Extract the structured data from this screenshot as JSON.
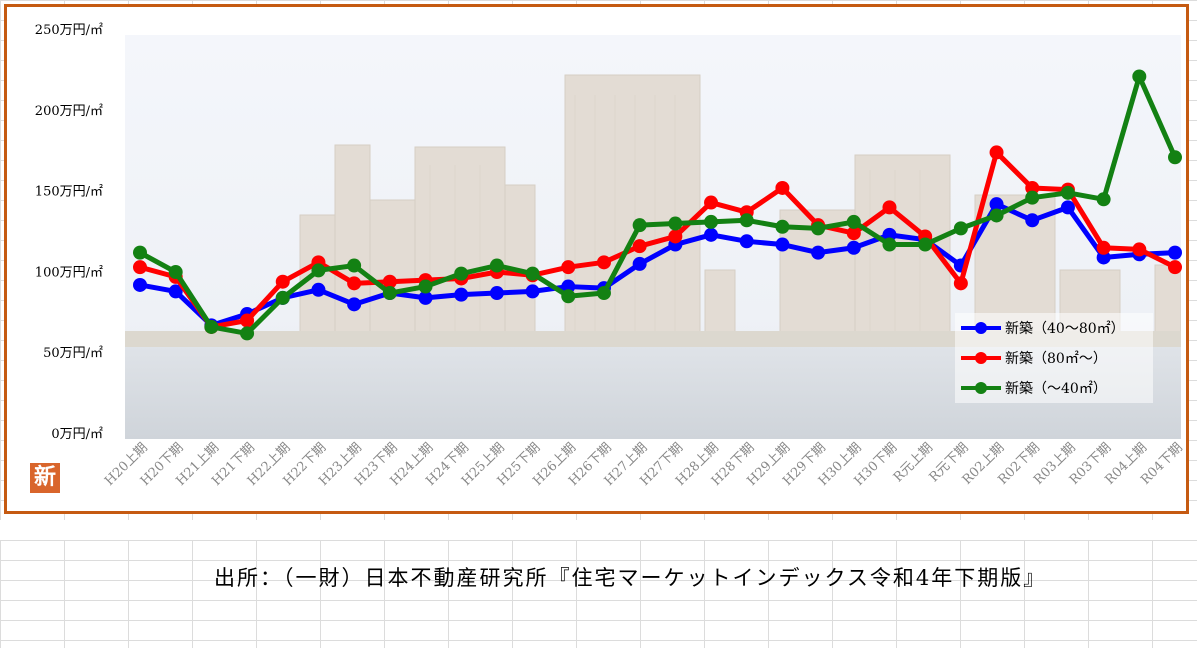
{
  "colors": {
    "blue": "#0000ff",
    "red": "#ff0000",
    "green": "#138113",
    "frame": "#c55a11"
  },
  "badge": {
    "label": "新",
    "icon": "new-badge-icon"
  },
  "source_text": "出所：（一財）日本不動産研究所『住宅マーケットインデックス令和4年下期版』",
  "chart_data": {
    "type": "line",
    "title": "",
    "xlabel": "",
    "ylabel": "",
    "ylim": [
      0,
      250
    ],
    "yticks": [
      0,
      50,
      100,
      150,
      200,
      250
    ],
    "ytick_labels": [
      "0万円/㎡",
      "50万円/㎡",
      "100万円/㎡",
      "150万円/㎡",
      "200万円/㎡",
      "250万円/㎡"
    ],
    "grid": false,
    "legend_position": "right",
    "background": "photo of waterfront high-rise buildings",
    "categories": [
      "H20上期",
      "H20下期",
      "H21上期",
      "H21下期",
      "H22上期",
      "H22下期",
      "H23上期",
      "H23下期",
      "H24上期",
      "H24下期",
      "H25上期",
      "H25下期",
      "H26上期",
      "H26下期",
      "H27上期",
      "H27下期",
      "H28上期",
      "H28下期",
      "H29上期",
      "H29下期",
      "H30上期",
      "H30下期",
      "R元上期",
      "R元下期",
      "R02上期",
      "R02下期",
      "R03上期",
      "R03下期",
      "R04上期",
      "R04下期"
    ],
    "series": [
      {
        "name": "新築（40～80㎡）",
        "color": "#0000ff",
        "values": [
          91,
          87,
          66,
          73,
          83,
          88,
          79,
          86,
          83,
          85,
          86,
          87,
          90,
          89,
          104,
          116,
          122,
          118,
          116,
          111,
          114,
          122,
          119,
          103,
          141,
          131,
          139,
          108,
          110,
          111
        ]
      },
      {
        "name": "新築（80㎡～）",
        "color": "#ff0000",
        "values": [
          102,
          96,
          65,
          69,
          93,
          105,
          92,
          93,
          94,
          95,
          99,
          97,
          102,
          105,
          115,
          121,
          142,
          136,
          151,
          128,
          123,
          139,
          121,
          92,
          173,
          151,
          150,
          114,
          113,
          102
        ]
      },
      {
        "name": "新築（～40㎡）",
        "color": "#138113",
        "values": [
          111,
          99,
          65,
          61,
          83,
          100,
          103,
          86,
          90,
          98,
          103,
          98,
          84,
          86,
          128,
          129,
          130,
          131,
          127,
          126,
          130,
          116,
          116,
          126,
          134,
          145,
          148,
          144,
          220,
          170
        ]
      }
    ]
  }
}
